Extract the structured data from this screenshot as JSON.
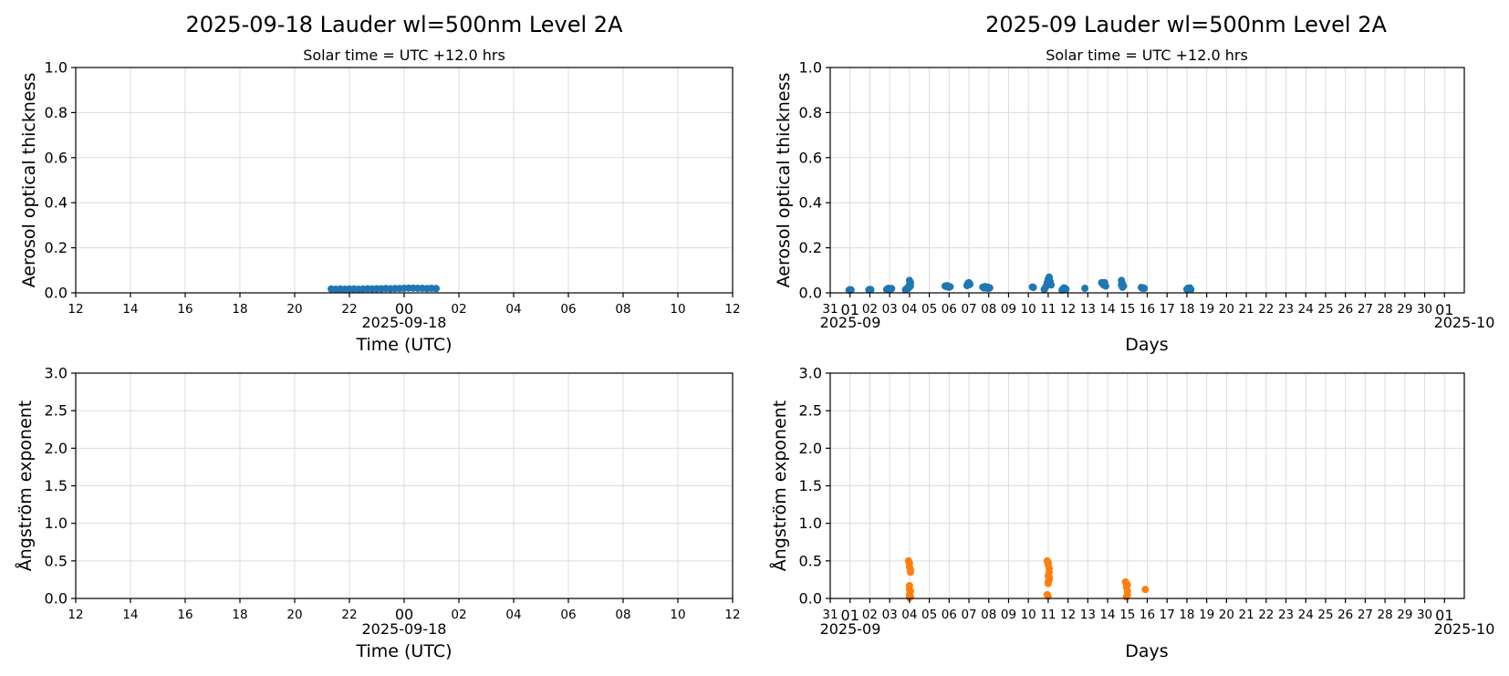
{
  "chart_data": [
    {
      "id": "daily-aot",
      "type": "scatter",
      "title": "2025-09-18  Lauder  wl=500nm  Level 2A",
      "subtitle": "Solar time = UTC +12.0 hrs",
      "xlabel": "Time (UTC)",
      "x_date_label": "2025-09-18",
      "ylabel": "Aerosol optical thickness",
      "ylim": [
        0,
        1.0
      ],
      "yticks": [
        "0.0",
        "0.2",
        "0.4",
        "0.6",
        "0.8",
        "1.0"
      ],
      "xlim_hours": [
        12,
        36
      ],
      "xticks": [
        "12",
        "14",
        "16",
        "18",
        "20",
        "22",
        "00",
        "02",
        "04",
        "06",
        "08",
        "10",
        "12"
      ],
      "grid": true,
      "color": "#1f77b4",
      "series": [
        {
          "x_time_utc": [
            "21:20",
            "21:30",
            "21:40",
            "21:50",
            "22:00",
            "22:10",
            "22:20",
            "22:30",
            "22:40",
            "22:50",
            "23:00",
            "23:10",
            "23:20",
            "23:30",
            "23:40",
            "23:50",
            "00:00",
            "00:10",
            "00:20",
            "00:30",
            "00:40",
            "00:50",
            "01:00",
            "01:10"
          ],
          "y": [
            0.017,
            0.016,
            0.017,
            0.016,
            0.017,
            0.017,
            0.016,
            0.017,
            0.018,
            0.017,
            0.018,
            0.018,
            0.019,
            0.018,
            0.019,
            0.019,
            0.02,
            0.021,
            0.021,
            0.02,
            0.02,
            0.019,
            0.02,
            0.019
          ]
        }
      ]
    },
    {
      "id": "monthly-aot",
      "type": "scatter",
      "title": "2025-09  Lauder  wl=500nm  Level 2A",
      "subtitle": "Solar time = UTC +12.0 hrs",
      "xlabel": "Days",
      "x_start_label": "2025-09",
      "x_end_label": "2025-10",
      "ylabel": "Aerosol optical thickness",
      "ylim": [
        0,
        1.0
      ],
      "yticks": [
        "0.0",
        "0.2",
        "0.4",
        "0.6",
        "0.8",
        "1.0"
      ],
      "xlim_days": [
        -1,
        31
      ],
      "xticks": [
        "31",
        "01",
        "02",
        "03",
        "04",
        "05",
        "06",
        "07",
        "08",
        "09",
        "10",
        "11",
        "12",
        "13",
        "14",
        "15",
        "16",
        "17",
        "18",
        "19",
        "20",
        "21",
        "22",
        "23",
        "24",
        "25",
        "26",
        "27",
        "28",
        "29",
        "30",
        "01"
      ],
      "grid": true,
      "color": "#1f77b4",
      "series": [
        {
          "x_day": [
            -0.05,
            0.0,
            0.05,
            0.95,
            1.0,
            1.05,
            1.85,
            1.9,
            1.95,
            2.0,
            2.05,
            2.1,
            2.8,
            2.85,
            2.9,
            2.95,
            3.0,
            3.0,
            3.05,
            3.05,
            4.8,
            4.85,
            4.9,
            4.95,
            5.0,
            5.05,
            5.9,
            5.95,
            6.0,
            6.0,
            6.05,
            6.7,
            6.75,
            6.8,
            6.85,
            6.9,
            6.95,
            7.0,
            7.05,
            9.2,
            9.25,
            9.8,
            9.85,
            9.9,
            9.95,
            10.0,
            10.0,
            10.05,
            10.05,
            10.1,
            10.1,
            10.15,
            10.7,
            10.75,
            10.8,
            10.85,
            10.9,
            11.85,
            12.7,
            12.75,
            12.8,
            12.85,
            12.9,
            13.7,
            13.7,
            13.75,
            13.75,
            13.8,
            14.7,
            14.75,
            14.8,
            14.85,
            17.0,
            17.05,
            17.1,
            17.15,
            17.2
          ],
          "y": [
            0.012,
            0.014,
            0.013,
            0.013,
            0.015,
            0.014,
            0.015,
            0.018,
            0.02,
            0.017,
            0.016,
            0.019,
            0.014,
            0.018,
            0.022,
            0.02,
            0.035,
            0.055,
            0.045,
            0.03,
            0.03,
            0.028,
            0.032,
            0.026,
            0.025,
            0.027,
            0.032,
            0.042,
            0.045,
            0.036,
            0.038,
            0.025,
            0.022,
            0.028,
            0.024,
            0.021,
            0.026,
            0.02,
            0.022,
            0.026,
            0.024,
            0.015,
            0.022,
            0.03,
            0.045,
            0.055,
            0.06,
            0.065,
            0.07,
            0.05,
            0.04,
            0.035,
            0.012,
            0.018,
            0.022,
            0.02,
            0.016,
            0.02,
            0.045,
            0.04,
            0.035,
            0.045,
            0.03,
            0.055,
            0.035,
            0.025,
            0.04,
            0.03,
            0.024,
            0.02,
            0.022,
            0.02,
            0.016,
            0.02,
            0.018,
            0.022,
            0.015
          ]
        }
      ]
    },
    {
      "id": "daily-angstrom",
      "type": "scatter",
      "title": "",
      "xlabel": "Time (UTC)",
      "x_date_label": "2025-09-18",
      "ylabel": "Ångström exponent",
      "ylim": [
        0,
        3.0
      ],
      "yticks": [
        "0.0",
        "0.5",
        "1.0",
        "1.5",
        "2.0",
        "2.5",
        "3.0"
      ],
      "xlim_hours": [
        12,
        36
      ],
      "xticks": [
        "12",
        "14",
        "16",
        "18",
        "20",
        "22",
        "00",
        "02",
        "04",
        "06",
        "08",
        "10",
        "12"
      ],
      "grid": true,
      "color": "#ff7f0e",
      "series": [
        {
          "x_time_utc": [],
          "y": []
        }
      ]
    },
    {
      "id": "monthly-angstrom",
      "type": "scatter",
      "title": "",
      "xlabel": "Days",
      "x_start_label": "2025-09",
      "x_end_label": "2025-10",
      "ylabel": "Ångström exponent",
      "ylim": [
        0,
        3.0
      ],
      "yticks": [
        "0.0",
        "0.5",
        "1.0",
        "1.5",
        "2.0",
        "2.5",
        "3.0"
      ],
      "xlim_days": [
        -1,
        31
      ],
      "xticks": [
        "31",
        "01",
        "02",
        "03",
        "04",
        "05",
        "06",
        "07",
        "08",
        "09",
        "10",
        "11",
        "12",
        "13",
        "14",
        "15",
        "16",
        "17",
        "18",
        "19",
        "20",
        "21",
        "22",
        "23",
        "24",
        "25",
        "26",
        "27",
        "28",
        "29",
        "30",
        "01"
      ],
      "grid": true,
      "color": "#ff7f0e",
      "series": [
        {
          "x_day": [
            2.95,
            3.0,
            3.0,
            3.05,
            3.05,
            3.0,
            3.0,
            3.05,
            3.0,
            3.05,
            3.0,
            9.95,
            10.0,
            10.0,
            10.05,
            10.05,
            10.0,
            10.05,
            10.0,
            10.0,
            10.05,
            9.95,
            10.0,
            13.9,
            13.95,
            14.0,
            13.95,
            14.0,
            14.0,
            13.95,
            14.9
          ],
          "y": [
            0.5,
            0.47,
            0.42,
            0.38,
            0.35,
            0.17,
            0.12,
            0.1,
            0.05,
            0.02,
            0.01,
            0.5,
            0.48,
            0.45,
            0.4,
            0.35,
            0.3,
            0.25,
            0.2,
            0.22,
            0.28,
            0.05,
            0.03,
            0.22,
            0.2,
            0.18,
            0.15,
            0.1,
            0.05,
            0.02,
            0.12
          ]
        }
      ]
    }
  ]
}
